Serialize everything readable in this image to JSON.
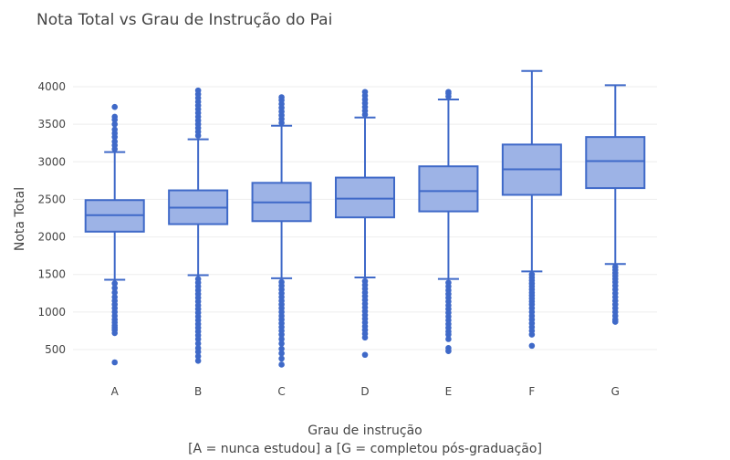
{
  "chart_data": {
    "type": "box",
    "title": "Nota Total vs Grau de Instrução do Pai",
    "xlabel_line1": "Grau de instrução",
    "xlabel_line2": "[A = nunca estudou] a [G = completou pós-graduação]",
    "ylabel": "Nota Total",
    "ylim": [
      250,
      4350
    ],
    "yticks": [
      500,
      1000,
      1500,
      2000,
      2500,
      3000,
      3500,
      4000
    ],
    "grid": true,
    "colors": {
      "box_fill": "#9db3e6",
      "box_line": "#3f69c8",
      "grid": "#eeeeee",
      "text": "#444444"
    },
    "categories": [
      "A",
      "B",
      "C",
      "D",
      "E",
      "F",
      "G"
    ],
    "boxes": [
      {
        "category": "A",
        "min_whisker": 1430,
        "q1": 2070,
        "median": 2290,
        "q3": 2490,
        "max_whisker": 3130,
        "outliers_high": [
          3170,
          3220,
          3270,
          3330,
          3380,
          3430,
          3500,
          3560,
          3600,
          3730
        ],
        "outliers_low": [
          1380,
          1320,
          1260,
          1200,
          1150,
          1100,
          1050,
          1000,
          950,
          900,
          860,
          820,
          790,
          760,
          720,
          330
        ]
      },
      {
        "category": "B",
        "min_whisker": 1490,
        "q1": 2170,
        "median": 2390,
        "q3": 2620,
        "max_whisker": 3300,
        "outliers_high": [
          3350,
          3400,
          3450,
          3500,
          3550,
          3600,
          3650,
          3700,
          3750,
          3800,
          3850,
          3900,
          3950
        ],
        "outliers_low": [
          1440,
          1390,
          1340,
          1290,
          1240,
          1190,
          1140,
          1090,
          1040,
          990,
          940,
          890,
          840,
          790,
          740,
          690,
          640,
          580,
          520,
          470,
          410,
          350
        ]
      },
      {
        "category": "C",
        "min_whisker": 1450,
        "q1": 2210,
        "median": 2460,
        "q3": 2720,
        "max_whisker": 3480,
        "outliers_high": [
          3520,
          3570,
          3620,
          3670,
          3720,
          3770,
          3820,
          3860
        ],
        "outliers_low": [
          1400,
          1350,
          1300,
          1250,
          1200,
          1150,
          1100,
          1050,
          1000,
          950,
          900,
          850,
          800,
          750,
          700,
          640,
          580,
          510,
          450,
          380,
          300
        ]
      },
      {
        "category": "D",
        "min_whisker": 1460,
        "q1": 2260,
        "median": 2510,
        "q3": 2790,
        "max_whisker": 3590,
        "outliers_high": [
          3630,
          3680,
          3730,
          3780,
          3830,
          3880,
          3930
        ],
        "outliers_low": [
          1410,
          1360,
          1310,
          1260,
          1210,
          1160,
          1110,
          1060,
          1010,
          960,
          910,
          860,
          810,
          760,
          710,
          660,
          430
        ]
      },
      {
        "category": "E",
        "min_whisker": 1440,
        "q1": 2340,
        "median": 2610,
        "q3": 2940,
        "max_whisker": 3830,
        "outliers_high": [
          3870,
          3910,
          3930
        ],
        "outliers_low": [
          1390,
          1340,
          1290,
          1240,
          1190,
          1140,
          1090,
          1040,
          990,
          940,
          890,
          840,
          790,
          740,
          700,
          640,
          520,
          480
        ]
      },
      {
        "category": "F",
        "min_whisker": 1540,
        "q1": 2560,
        "median": 2900,
        "q3": 3230,
        "max_whisker": 4210,
        "outliers_high": [],
        "outliers_low": [
          1500,
          1460,
          1420,
          1380,
          1340,
          1300,
          1260,
          1220,
          1180,
          1140,
          1100,
          1050,
          1000,
          950,
          900,
          850,
          800,
          750,
          700,
          550
        ]
      },
      {
        "category": "G",
        "min_whisker": 1640,
        "q1": 2650,
        "median": 3010,
        "q3": 3330,
        "max_whisker": 4020,
        "outliers_high": [],
        "outliers_low": [
          1600,
          1560,
          1520,
          1480,
          1440,
          1400,
          1350,
          1300,
          1250,
          1200,
          1150,
          1100,
          1050,
          1000,
          950,
          900,
          870
        ]
      }
    ]
  }
}
